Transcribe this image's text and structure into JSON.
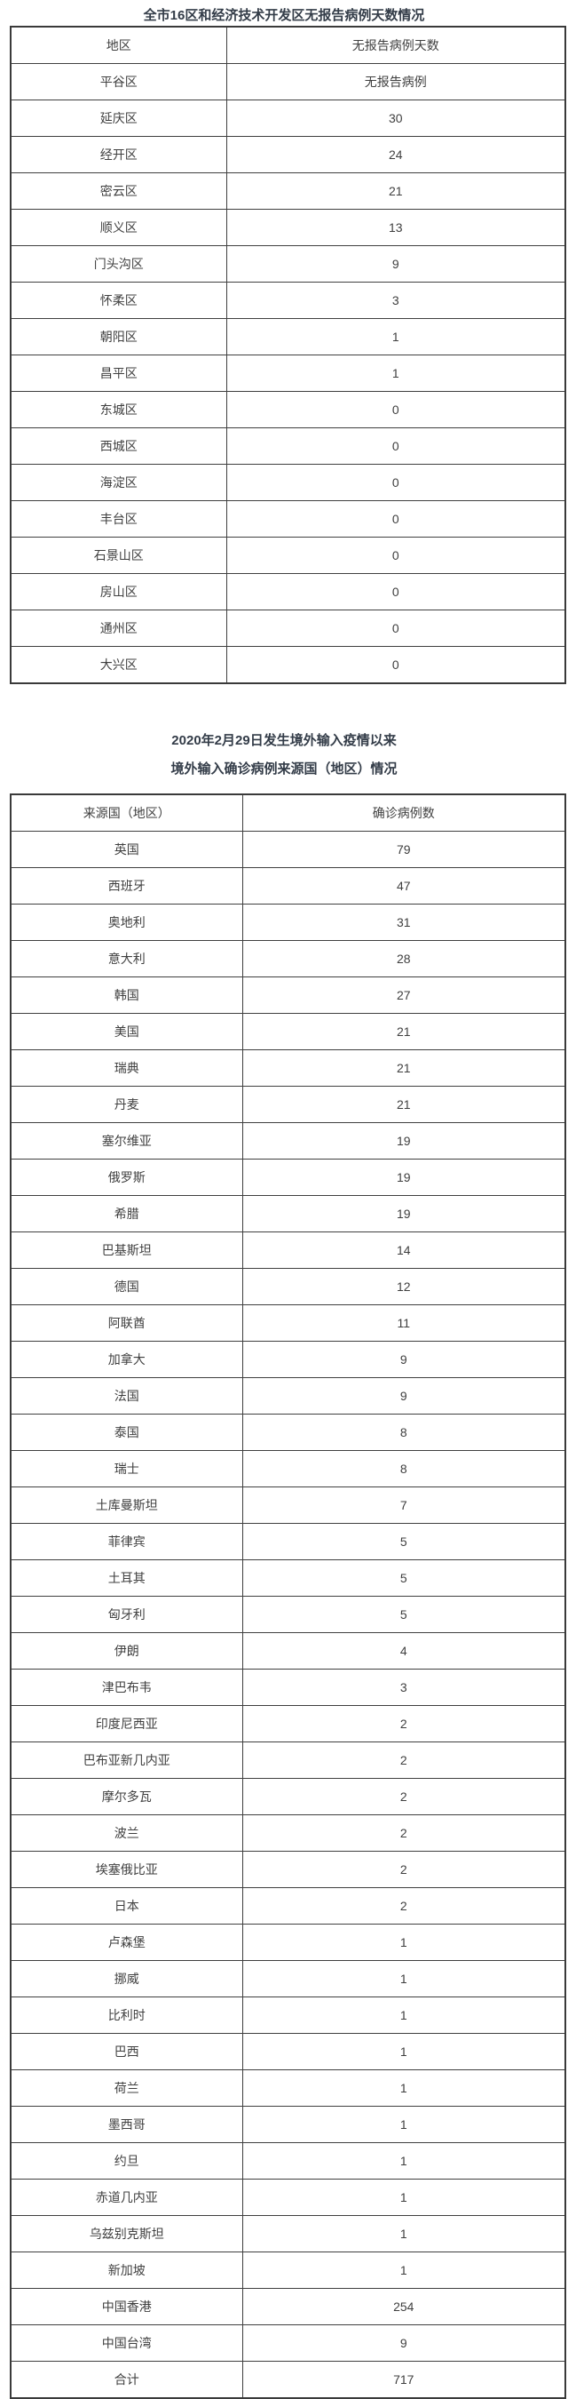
{
  "colors": {
    "background": "#ffffff",
    "title_text": "#333c48",
    "cell_text": "#3f3f3f",
    "table_border": "#3f3f3f"
  },
  "table1": {
    "title": "全市16区和经济技术开发区无报告病例天数情况",
    "columns": [
      "地区",
      "无报告病例天数"
    ],
    "rows": [
      [
        "平谷区",
        "无报告病例"
      ],
      [
        "延庆区",
        "30"
      ],
      [
        "经开区",
        "24"
      ],
      [
        "密云区",
        "21"
      ],
      [
        "顺义区",
        "13"
      ],
      [
        "门头沟区",
        "9"
      ],
      [
        "怀柔区",
        "3"
      ],
      [
        "朝阳区",
        "1"
      ],
      [
        "昌平区",
        "1"
      ],
      [
        "东城区",
        "0"
      ],
      [
        "西城区",
        "0"
      ],
      [
        "海淀区",
        "0"
      ],
      [
        "丰台区",
        "0"
      ],
      [
        "石景山区",
        "0"
      ],
      [
        "房山区",
        "0"
      ],
      [
        "通州区",
        "0"
      ],
      [
        "大兴区",
        "0"
      ]
    ]
  },
  "table2": {
    "title_line1": "2020年2月29日发生境外输入疫情以来",
    "title_line2": "境外输入确诊病例来源国（地区）情况",
    "columns": [
      "来源国（地区）",
      "确诊病例数"
    ],
    "rows": [
      [
        "英国",
        "79"
      ],
      [
        "西班牙",
        "47"
      ],
      [
        "奥地利",
        "31"
      ],
      [
        "意大利",
        "28"
      ],
      [
        "韩国",
        "27"
      ],
      [
        "美国",
        "21"
      ],
      [
        "瑞典",
        "21"
      ],
      [
        "丹麦",
        "21"
      ],
      [
        "塞尔维亚",
        "19"
      ],
      [
        "俄罗斯",
        "19"
      ],
      [
        "希腊",
        "19"
      ],
      [
        "巴基斯坦",
        "14"
      ],
      [
        "德国",
        "12"
      ],
      [
        "阿联酋",
        "11"
      ],
      [
        "加拿大",
        "9"
      ],
      [
        "法国",
        "9"
      ],
      [
        "泰国",
        "8"
      ],
      [
        "瑞士",
        "8"
      ],
      [
        "土库曼斯坦",
        "7"
      ],
      [
        "菲律宾",
        "5"
      ],
      [
        "土耳其",
        "5"
      ],
      [
        "匈牙利",
        "5"
      ],
      [
        "伊朗",
        "4"
      ],
      [
        "津巴布韦",
        "3"
      ],
      [
        "印度尼西亚",
        "2"
      ],
      [
        "巴布亚新几内亚",
        "2"
      ],
      [
        "摩尔多瓦",
        "2"
      ],
      [
        "波兰",
        "2"
      ],
      [
        "埃塞俄比亚",
        "2"
      ],
      [
        "日本",
        "2"
      ],
      [
        "卢森堡",
        "1"
      ],
      [
        "挪威",
        "1"
      ],
      [
        "比利时",
        "1"
      ],
      [
        "巴西",
        "1"
      ],
      [
        "荷兰",
        "1"
      ],
      [
        "墨西哥",
        "1"
      ],
      [
        "约旦",
        "1"
      ],
      [
        "赤道几内亚",
        "1"
      ],
      [
        "乌兹别克斯坦",
        "1"
      ],
      [
        "新加坡",
        "1"
      ],
      [
        "中国香港",
        "254"
      ],
      [
        "中国台湾",
        "9"
      ]
    ],
    "total": [
      "合计",
      "717"
    ]
  }
}
